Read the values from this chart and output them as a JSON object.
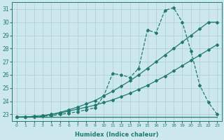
{
  "xlabel": "Humidex (Indice chaleur)",
  "x_values": [
    0,
    1,
    2,
    3,
    4,
    5,
    6,
    7,
    8,
    9,
    10,
    11,
    12,
    13,
    14,
    15,
    16,
    17,
    18,
    19,
    20,
    21,
    22,
    23
  ],
  "line_flat_y": [
    22.8,
    22.8,
    22.8,
    22.8,
    22.8,
    22.8,
    22.8,
    22.8,
    22.8,
    22.8,
    22.8,
    22.8,
    22.8,
    22.8,
    22.8,
    22.8,
    22.8,
    22.8,
    22.8,
    22.8,
    22.8,
    22.8,
    22.8,
    22.8
  ],
  "line_diag1_y": [
    22.8,
    22.8,
    22.85,
    22.9,
    23.0,
    23.1,
    23.25,
    23.4,
    23.55,
    23.7,
    23.9,
    24.1,
    24.35,
    24.6,
    24.9,
    25.2,
    25.55,
    25.9,
    26.3,
    26.7,
    27.1,
    27.5,
    27.9,
    28.3
  ],
  "line_diag2_y": [
    22.8,
    22.8,
    22.85,
    22.9,
    23.0,
    23.15,
    23.35,
    23.55,
    23.8,
    24.05,
    24.4,
    24.75,
    25.15,
    25.55,
    26.0,
    26.5,
    27.0,
    27.5,
    28.0,
    28.5,
    29.0,
    29.5,
    30.0,
    30.0
  ],
  "line_jagged_y": [
    22.8,
    22.8,
    22.8,
    22.85,
    22.9,
    23.0,
    23.1,
    23.2,
    23.35,
    23.5,
    24.4,
    26.1,
    26.0,
    25.8,
    26.5,
    29.4,
    29.2,
    30.9,
    31.1,
    30.0,
    27.8,
    25.2,
    23.9,
    23.0
  ],
  "ylim": [
    22.5,
    31.5
  ],
  "xlim": [
    -0.5,
    23.5
  ],
  "yticks": [
    23,
    24,
    25,
    26,
    27,
    28,
    29,
    30,
    31
  ],
  "xticks": [
    0,
    1,
    2,
    3,
    4,
    5,
    6,
    7,
    8,
    9,
    10,
    11,
    12,
    13,
    14,
    15,
    16,
    17,
    18,
    19,
    20,
    21,
    22,
    23
  ],
  "line_color": "#1f7a70",
  "bg_color": "#cde8ec",
  "grid_color": "#aacccc"
}
